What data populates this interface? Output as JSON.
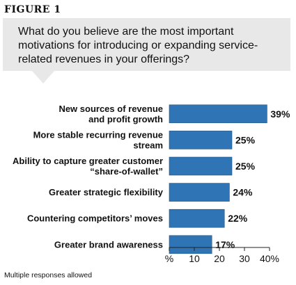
{
  "figure_label": "FIGURE 1",
  "question": "What do you believe are the most important motivations for introducing or expanding service-related revenues in your offerings?",
  "footnote": "Multiple responses allowed",
  "colors": {
    "bar": "#2f75b5",
    "bar_edge": "#1f4f7d",
    "box": "#e8e8e8"
  },
  "chart_data": {
    "type": "bar",
    "orientation": "horizontal",
    "categories": [
      [
        "New sources of revenue",
        "and profit growth"
      ],
      [
        "More stable recurring revenue",
        "stream"
      ],
      [
        "Ability to capture greater customer",
        "“share-of-wallet”"
      ],
      [
        "Greater strategic flexibility"
      ],
      [
        "Countering competitors’ moves"
      ],
      [
        "Greater brand awareness"
      ]
    ],
    "values": [
      39,
      25,
      25,
      24,
      22,
      17
    ],
    "value_labels": [
      "39%",
      "25%",
      "25%",
      "24%",
      "22%",
      "17%"
    ],
    "xlim": [
      0,
      40
    ],
    "x_ticks": [
      0,
      10,
      20,
      30,
      40
    ],
    "x_tick_labels": [
      "%",
      "10",
      "20",
      "30",
      "40%"
    ],
    "grid": false,
    "legend": "none"
  }
}
